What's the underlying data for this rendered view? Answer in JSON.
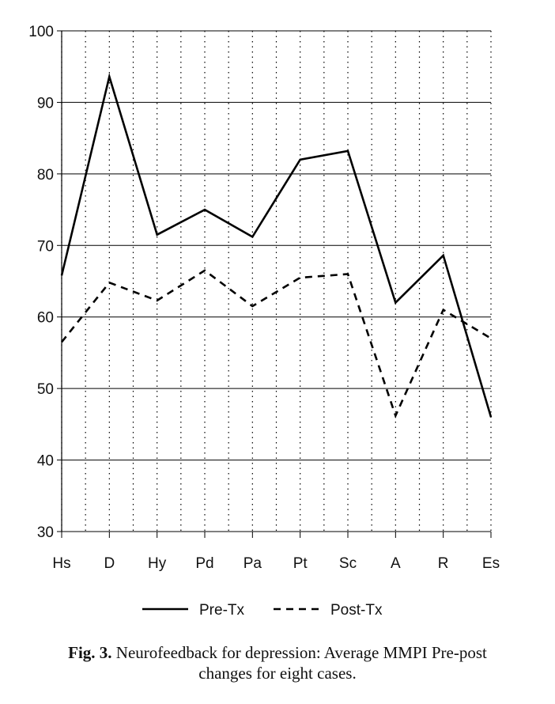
{
  "chart_data": {
    "type": "line",
    "categories": [
      "Hs",
      "D",
      "Hy",
      "Pd",
      "Pa",
      "Pt",
      "Sc",
      "A",
      "R",
      "Es"
    ],
    "series": [
      {
        "name": "Pre-Tx",
        "style": "solid",
        "values": [
          65.8,
          93.6,
          71.5,
          75.0,
          71.2,
          82.0,
          83.2,
          62.0,
          68.6,
          46.0
        ]
      },
      {
        "name": "Post-Tx",
        "style": "dashed",
        "values": [
          56.5,
          64.8,
          62.3,
          66.5,
          61.5,
          65.5,
          66.0,
          46.2,
          61.0,
          57.0
        ]
      }
    ],
    "ylim": [
      30,
      100
    ],
    "yticks": [
      30,
      40,
      50,
      60,
      70,
      80,
      90,
      100
    ],
    "y_tick_labels": [
      "30",
      "40",
      "50",
      "60",
      "70",
      "80",
      "90",
      "100"
    ],
    "grid": {
      "horizontal": "solid",
      "vertical": "dotted"
    },
    "legend_position": "bottom-center",
    "line_color": "#000000"
  },
  "caption": {
    "label": "Fig. 3.",
    "line1": "Neurofeedback for depression: Average MMPI Pre-post",
    "line2": "changes for eight cases."
  }
}
